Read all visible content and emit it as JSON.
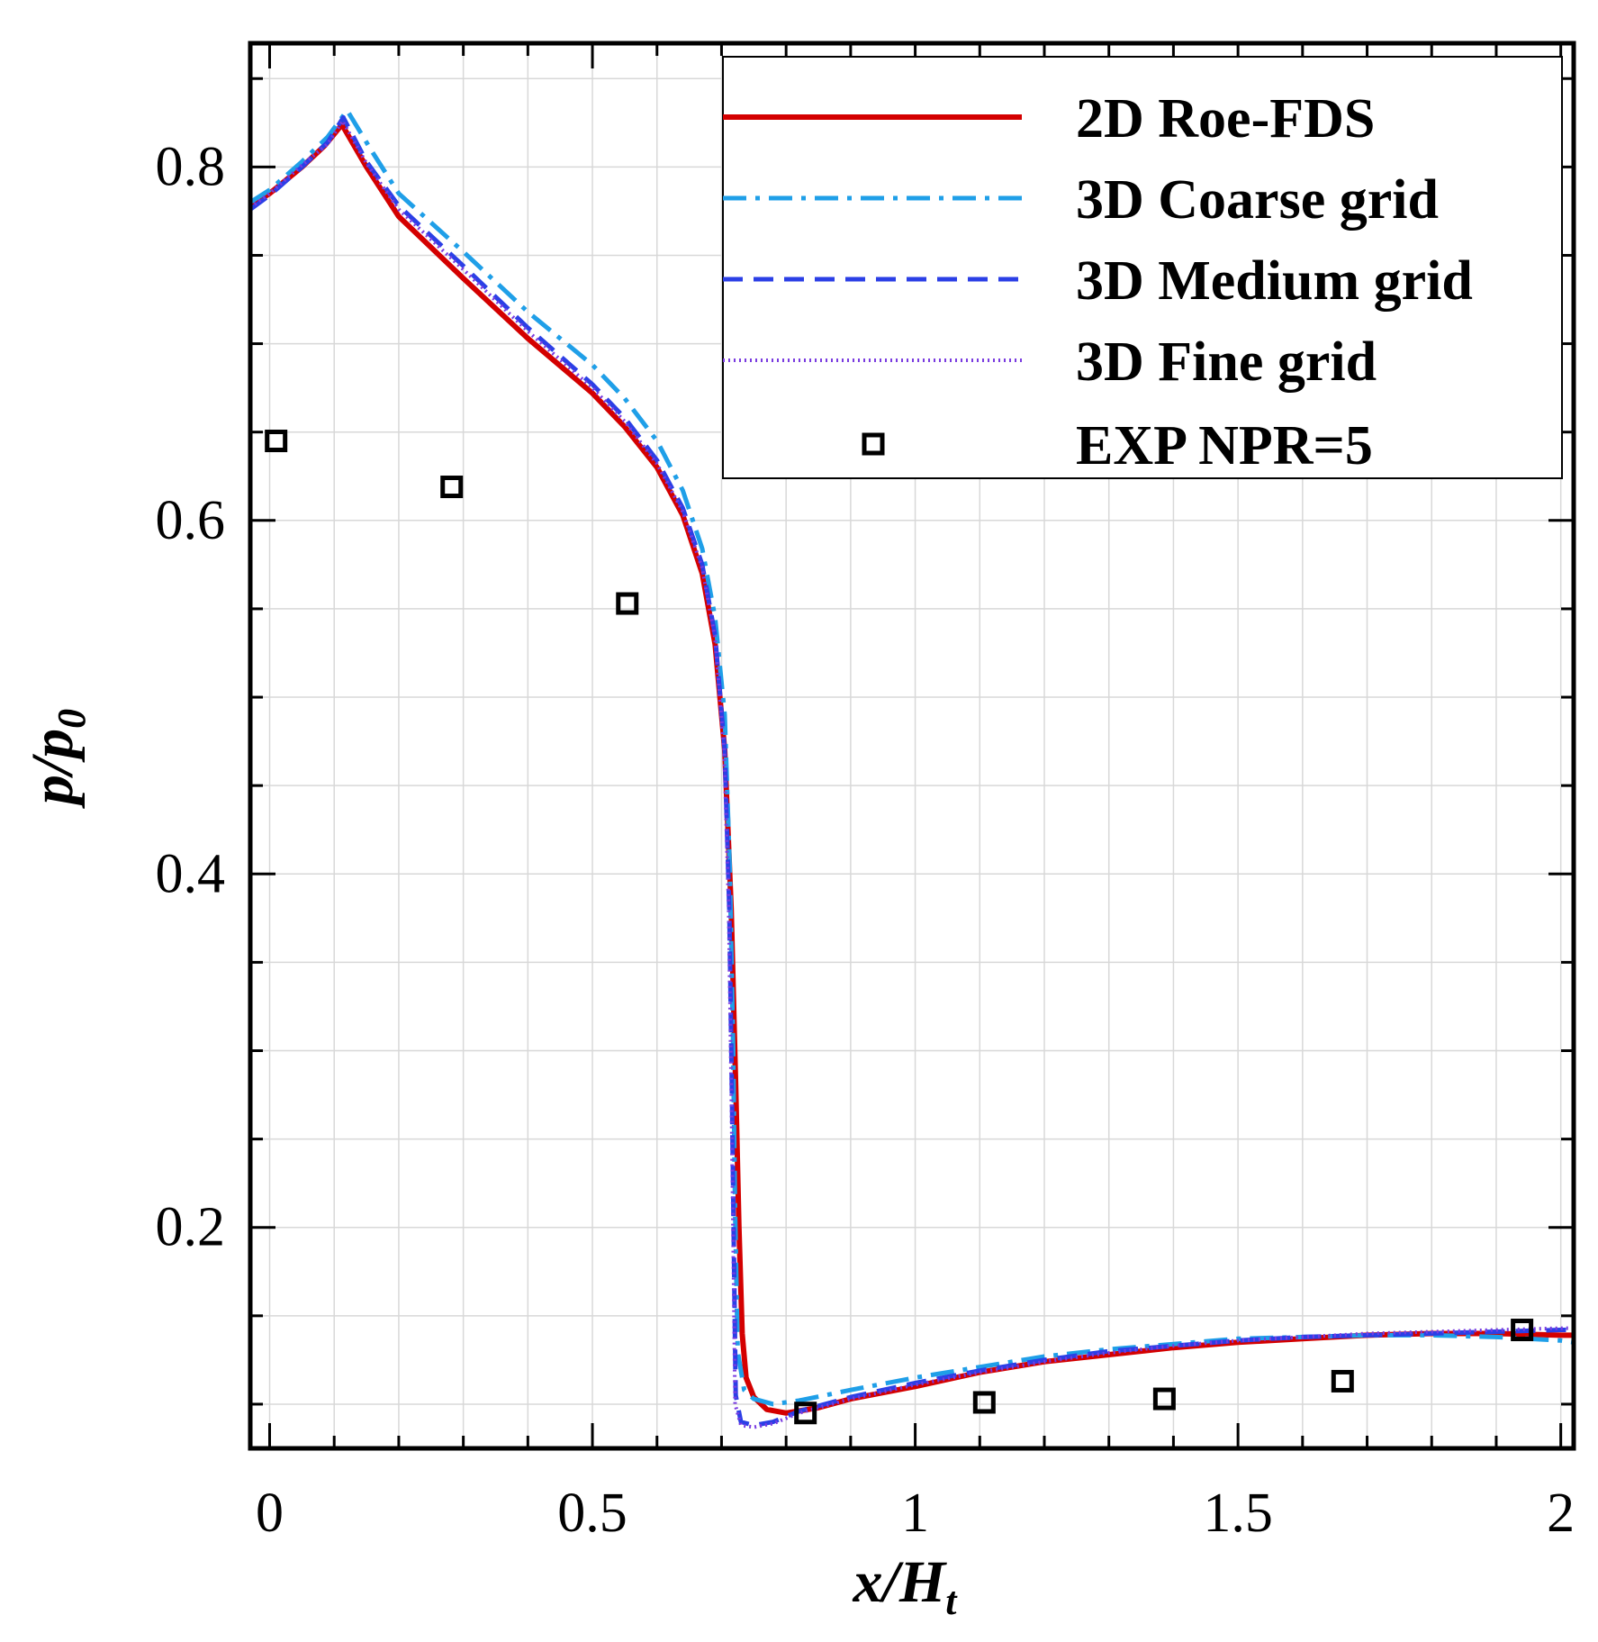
{
  "chart_data": {
    "type": "line",
    "title": "",
    "xlabel": "x/H",
    "xlabel_sub": "t",
    "ylabel": "p/p",
    "ylabel_sub": "0",
    "xlim": [
      -0.03,
      2.02
    ],
    "ylim": [
      0.075,
      0.87
    ],
    "xticks": [
      0,
      0.5,
      1,
      1.5,
      2
    ],
    "xtick_labels": [
      "0",
      "0.5",
      "1",
      "1.5",
      "2"
    ],
    "xminor_step": 0.1,
    "yticks": [
      0.2,
      0.4,
      0.6,
      0.8
    ],
    "ytick_labels": [
      "0.2",
      "0.4",
      "0.6",
      "0.8"
    ],
    "yminor_step": 0.05,
    "grid": true,
    "legend_position": "top-right",
    "series": [
      {
        "name": "2D Roe-FDS",
        "color": "#d40000",
        "dash": "solid",
        "points": [
          [
            -0.03,
            0.778
          ],
          [
            0.0,
            0.785
          ],
          [
            0.05,
            0.8
          ],
          [
            0.085,
            0.812
          ],
          [
            0.112,
            0.824
          ],
          [
            0.15,
            0.8
          ],
          [
            0.2,
            0.772
          ],
          [
            0.3,
            0.737
          ],
          [
            0.4,
            0.703
          ],
          [
            0.5,
            0.672
          ],
          [
            0.55,
            0.653
          ],
          [
            0.6,
            0.63
          ],
          [
            0.64,
            0.603
          ],
          [
            0.67,
            0.57
          ],
          [
            0.69,
            0.53
          ],
          [
            0.705,
            0.47
          ],
          [
            0.715,
            0.38
          ],
          [
            0.722,
            0.28
          ],
          [
            0.727,
            0.2
          ],
          [
            0.732,
            0.14
          ],
          [
            0.738,
            0.115
          ],
          [
            0.75,
            0.104
          ],
          [
            0.77,
            0.097
          ],
          [
            0.8,
            0.095
          ],
          [
            0.85,
            0.098
          ],
          [
            0.9,
            0.103
          ],
          [
            1.0,
            0.11
          ],
          [
            1.1,
            0.118
          ],
          [
            1.2,
            0.124
          ],
          [
            1.3,
            0.128
          ],
          [
            1.4,
            0.132
          ],
          [
            1.5,
            0.135
          ],
          [
            1.6,
            0.137
          ],
          [
            1.7,
            0.139
          ],
          [
            1.8,
            0.14
          ],
          [
            1.9,
            0.14
          ],
          [
            2.0,
            0.139
          ],
          [
            2.02,
            0.139
          ]
        ]
      },
      {
        "name": "3D Coarse grid",
        "color": "#1f9fe8",
        "dash": "dashdot",
        "points": [
          [
            -0.03,
            0.78
          ],
          [
            0.0,
            0.787
          ],
          [
            0.05,
            0.803
          ],
          [
            0.09,
            0.817
          ],
          [
            0.12,
            0.832
          ],
          [
            0.16,
            0.808
          ],
          [
            0.2,
            0.785
          ],
          [
            0.3,
            0.752
          ],
          [
            0.4,
            0.718
          ],
          [
            0.5,
            0.688
          ],
          [
            0.55,
            0.669
          ],
          [
            0.6,
            0.645
          ],
          [
            0.64,
            0.617
          ],
          [
            0.67,
            0.584
          ],
          [
            0.69,
            0.545
          ],
          [
            0.705,
            0.49
          ],
          [
            0.713,
            0.4
          ],
          [
            0.718,
            0.3
          ],
          [
            0.721,
            0.21
          ],
          [
            0.725,
            0.13
          ],
          [
            0.735,
            0.108
          ],
          [
            0.75,
            0.103
          ],
          [
            0.78,
            0.1
          ],
          [
            0.82,
            0.102
          ],
          [
            0.9,
            0.108
          ],
          [
            1.0,
            0.115
          ],
          [
            1.1,
            0.121
          ],
          [
            1.2,
            0.127
          ],
          [
            1.3,
            0.131
          ],
          [
            1.4,
            0.134
          ],
          [
            1.5,
            0.137
          ],
          [
            1.6,
            0.138
          ],
          [
            1.7,
            0.139
          ],
          [
            1.8,
            0.139
          ],
          [
            1.9,
            0.138
          ],
          [
            2.0,
            0.136
          ],
          [
            2.02,
            0.135
          ]
        ]
      },
      {
        "name": "3D Medium grid",
        "color": "#2b3fe6",
        "dash": "dashed",
        "points": [
          [
            -0.03,
            0.776
          ],
          [
            0.0,
            0.784
          ],
          [
            0.05,
            0.8
          ],
          [
            0.09,
            0.814
          ],
          [
            0.114,
            0.828
          ],
          [
            0.15,
            0.803
          ],
          [
            0.2,
            0.778
          ],
          [
            0.3,
            0.744
          ],
          [
            0.4,
            0.709
          ],
          [
            0.5,
            0.677
          ],
          [
            0.55,
            0.658
          ],
          [
            0.6,
            0.634
          ],
          [
            0.64,
            0.607
          ],
          [
            0.67,
            0.575
          ],
          [
            0.69,
            0.535
          ],
          [
            0.705,
            0.47
          ],
          [
            0.712,
            0.38
          ],
          [
            0.716,
            0.28
          ],
          [
            0.719,
            0.19
          ],
          [
            0.722,
            0.105
          ],
          [
            0.73,
            0.09
          ],
          [
            0.75,
            0.088
          ],
          [
            0.78,
            0.09
          ],
          [
            0.82,
            0.096
          ],
          [
            0.9,
            0.104
          ],
          [
            1.0,
            0.112
          ],
          [
            1.1,
            0.119
          ],
          [
            1.2,
            0.125
          ],
          [
            1.3,
            0.13
          ],
          [
            1.4,
            0.133
          ],
          [
            1.5,
            0.136
          ],
          [
            1.6,
            0.138
          ],
          [
            1.7,
            0.139
          ],
          [
            1.8,
            0.14
          ],
          [
            1.9,
            0.141
          ],
          [
            2.0,
            0.142
          ],
          [
            2.02,
            0.142
          ]
        ]
      },
      {
        "name": "3D Fine grid",
        "color": "#7a3ce0",
        "dash": "dotted",
        "points": [
          [
            -0.03,
            0.777
          ],
          [
            0.0,
            0.785
          ],
          [
            0.05,
            0.801
          ],
          [
            0.09,
            0.813
          ],
          [
            0.113,
            0.826
          ],
          [
            0.15,
            0.802
          ],
          [
            0.2,
            0.776
          ],
          [
            0.3,
            0.742
          ],
          [
            0.4,
            0.707
          ],
          [
            0.5,
            0.675
          ],
          [
            0.55,
            0.656
          ],
          [
            0.6,
            0.632
          ],
          [
            0.64,
            0.605
          ],
          [
            0.67,
            0.573
          ],
          [
            0.69,
            0.533
          ],
          [
            0.704,
            0.47
          ],
          [
            0.711,
            0.38
          ],
          [
            0.715,
            0.28
          ],
          [
            0.718,
            0.19
          ],
          [
            0.721,
            0.1
          ],
          [
            0.73,
            0.088
          ],
          [
            0.75,
            0.087
          ],
          [
            0.78,
            0.089
          ],
          [
            0.82,
            0.095
          ],
          [
            0.9,
            0.103
          ],
          [
            1.0,
            0.111
          ],
          [
            1.1,
            0.118
          ],
          [
            1.2,
            0.124
          ],
          [
            1.3,
            0.129
          ],
          [
            1.4,
            0.133
          ],
          [
            1.5,
            0.136
          ],
          [
            1.6,
            0.138
          ],
          [
            1.7,
            0.14
          ],
          [
            1.8,
            0.141
          ],
          [
            1.9,
            0.142
          ],
          [
            2.0,
            0.143
          ],
          [
            2.02,
            0.143
          ]
        ]
      }
    ],
    "experiment": {
      "name": "EXP NPR=5",
      "color": "#000000",
      "marker": "square",
      "points": [
        [
          0.01,
          0.645
        ],
        [
          0.282,
          0.619
        ],
        [
          0.554,
          0.553
        ],
        [
          0.83,
          0.095
        ],
        [
          1.107,
          0.101
        ],
        [
          1.386,
          0.103
        ],
        [
          1.662,
          0.113
        ],
        [
          1.94,
          0.142
        ]
      ]
    }
  }
}
